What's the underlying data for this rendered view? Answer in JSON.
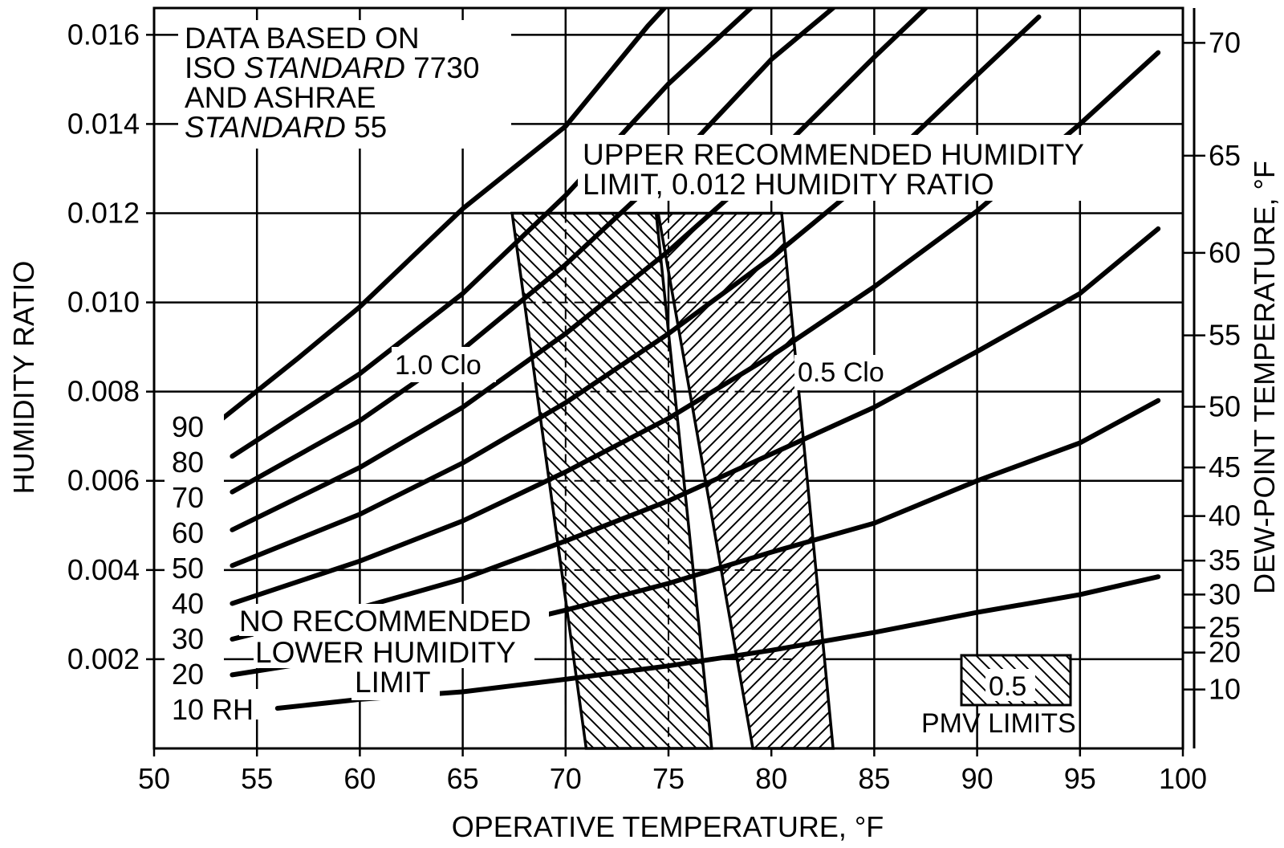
{
  "chart_data": {
    "type": "line",
    "title": "",
    "xlabel": "OPERATIVE TEMPERATURE, °F",
    "ylabel": "HUMIDITY RATIO",
    "y2label": "DEW-POINT TEMPERATURE, °F",
    "xlim": [
      50,
      100
    ],
    "ylim": [
      0,
      0.0166
    ],
    "x_ticks": [
      50,
      55,
      60,
      65,
      70,
      75,
      80,
      85,
      90,
      95,
      100
    ],
    "x_tick_labels": [
      "50",
      "55",
      "60",
      "65",
      "70",
      "75",
      "80",
      "85",
      "90",
      "95",
      "100"
    ],
    "y_ticks": [
      0.002,
      0.004,
      0.006,
      0.008,
      0.01,
      0.012,
      0.014,
      0.016
    ],
    "y_tick_labels": [
      "0.002",
      "0.004",
      "0.006",
      "0.008",
      "0.010",
      "0.012",
      "0.014",
      "0.016"
    ],
    "dew_point_ticks": [
      {
        "label": "10",
        "w": 0.00132
      },
      {
        "label": "20",
        "w": 0.00215
      },
      {
        "label": "25",
        "w": 0.00271
      },
      {
        "label": "30",
        "w": 0.00345
      },
      {
        "label": "35",
        "w": 0.00421
      },
      {
        "label": "40",
        "w": 0.00521
      },
      {
        "label": "45",
        "w": 0.0063
      },
      {
        "label": "50",
        "w": 0.00766
      },
      {
        "label": "55",
        "w": 0.00926
      },
      {
        "label": "60",
        "w": 0.01111
      },
      {
        "label": "65",
        "w": 0.01329
      },
      {
        "label": "70",
        "w": 0.01582
      }
    ],
    "rh_curves": [
      {
        "name": "10",
        "label": "10 RH",
        "points": [
          [
            56.0,
            0.0009
          ],
          [
            60.0,
            0.0011
          ],
          [
            65.0,
            0.00127
          ],
          [
            70.0,
            0.00155
          ],
          [
            75.0,
            0.00185
          ],
          [
            80.0,
            0.0022
          ],
          [
            85.0,
            0.0026
          ],
          [
            90.0,
            0.00305
          ],
          [
            95.0,
            0.00345
          ],
          [
            98.8,
            0.00385
          ]
        ]
      },
      {
        "name": "20",
        "label": "20",
        "points": [
          [
            53.8,
            0.00165
          ],
          [
            60.0,
            0.0021
          ],
          [
            65.0,
            0.00255
          ],
          [
            70.0,
            0.0031
          ],
          [
            75.0,
            0.0037
          ],
          [
            80.0,
            0.0044
          ],
          [
            85.0,
            0.00505
          ],
          [
            90.0,
            0.006
          ],
          [
            95.0,
            0.00685
          ],
          [
            98.8,
            0.0078
          ]
        ]
      },
      {
        "name": "30",
        "label": "30",
        "points": [
          [
            53.8,
            0.00245
          ],
          [
            60.0,
            0.00315
          ],
          [
            65.0,
            0.0038
          ],
          [
            70.0,
            0.00465
          ],
          [
            75.0,
            0.00555
          ],
          [
            80.0,
            0.0066
          ],
          [
            85.0,
            0.00765
          ],
          [
            90.0,
            0.0089
          ],
          [
            95.0,
            0.0102
          ],
          [
            98.8,
            0.01165
          ]
        ]
      },
      {
        "name": "40",
        "label": "40",
        "points": [
          [
            53.8,
            0.00325
          ],
          [
            60.0,
            0.0042
          ],
          [
            65.0,
            0.0051
          ],
          [
            70.0,
            0.0062
          ],
          [
            75.0,
            0.0074
          ],
          [
            80.0,
            0.0088
          ],
          [
            85.0,
            0.01035
          ],
          [
            90.0,
            0.01205
          ],
          [
            95.0,
            0.014
          ],
          [
            98.8,
            0.0156
          ]
        ]
      },
      {
        "name": "50",
        "label": "50",
        "points": [
          [
            53.8,
            0.0041
          ],
          [
            60.0,
            0.00525
          ],
          [
            65.0,
            0.0064
          ],
          [
            70.0,
            0.00775
          ],
          [
            75.0,
            0.0093
          ],
          [
            80.0,
            0.011
          ],
          [
            85.0,
            0.0129
          ],
          [
            90.0,
            0.0151
          ],
          [
            93.0,
            0.0164
          ]
        ]
      },
      {
        "name": "60",
        "label": "60",
        "points": [
          [
            53.8,
            0.0049
          ],
          [
            60.0,
            0.0063
          ],
          [
            65.0,
            0.00765
          ],
          [
            70.0,
            0.0093
          ],
          [
            75.0,
            0.01115
          ],
          [
            80.0,
            0.0132
          ],
          [
            85.0,
            0.0155
          ],
          [
            87.5,
            0.0166
          ]
        ]
      },
      {
        "name": "70",
        "label": "70",
        "points": [
          [
            53.8,
            0.00575
          ],
          [
            60.0,
            0.00735
          ],
          [
            65.0,
            0.00895
          ],
          [
            70.0,
            0.01085
          ],
          [
            75.0,
            0.013
          ],
          [
            80.0,
            0.01545
          ],
          [
            83.0,
            0.0166
          ]
        ]
      },
      {
        "name": "80",
        "label": "80",
        "points": [
          [
            53.8,
            0.00655
          ],
          [
            60.0,
            0.0084
          ],
          [
            65.0,
            0.0102
          ],
          [
            70.0,
            0.0124
          ],
          [
            75.0,
            0.0149
          ],
          [
            79.0,
            0.0166
          ]
        ]
      },
      {
        "name": "90",
        "label": "90",
        "points": [
          [
            53.2,
            0.00735
          ],
          [
            57.0,
            0.00875
          ],
          [
            60.0,
            0.0099
          ],
          [
            65.0,
            0.0121
          ],
          [
            70.0,
            0.01395
          ],
          [
            74.0,
            0.0162
          ],
          [
            74.8,
            0.0166
          ]
        ]
      }
    ],
    "rh_labels": [
      "90",
      "80",
      "70",
      "60",
      "50",
      "40",
      "30",
      "20",
      "10 RH"
    ],
    "comfort_zones": [
      {
        "name": "1.0 Clo",
        "label": "1.0 Clo",
        "polygon": [
          [
            67.4,
            0.012
          ],
          [
            74.4,
            0.012
          ],
          [
            77.1,
            0.0
          ],
          [
            71.0,
            0.0
          ]
        ],
        "hatch": "backslash"
      },
      {
        "name": "0.5 Clo",
        "label": "0.5 Clo",
        "polygon": [
          [
            74.5,
            0.012
          ],
          [
            80.5,
            0.012
          ],
          [
            83.0,
            0.0
          ],
          [
            79.1,
            0.0
          ]
        ],
        "hatch": "slash"
      }
    ],
    "reference_lines": {
      "dashed_verticals": [
        70,
        75
      ],
      "dashed_horizontals": [
        0.002,
        0.004,
        0.006,
        0.008,
        0.01
      ],
      "upper_humidity_limit": 0.012
    },
    "annotations": {
      "source_line1": "DATA BASED ON",
      "source_line2_a": "ISO ",
      "source_line2_b": "STANDARD",
      "source_line2_c": " 7730",
      "source_line3": "AND ASHRAE",
      "source_line4_a": "STANDARD",
      "source_line4_b": " 55",
      "upper_limit_line1": "UPPER RECOMMENDED HUMIDITY",
      "upper_limit_line2": "LIMIT, 0.012 HUMIDITY RATIO",
      "lower_limit_line1": "NO RECOMMENDED",
      "lower_limit_line2": "LOWER HUMIDITY",
      "lower_limit_line3": "LIMIT",
      "legend_value": "0.5",
      "legend_label": "PMV LIMITS"
    }
  }
}
